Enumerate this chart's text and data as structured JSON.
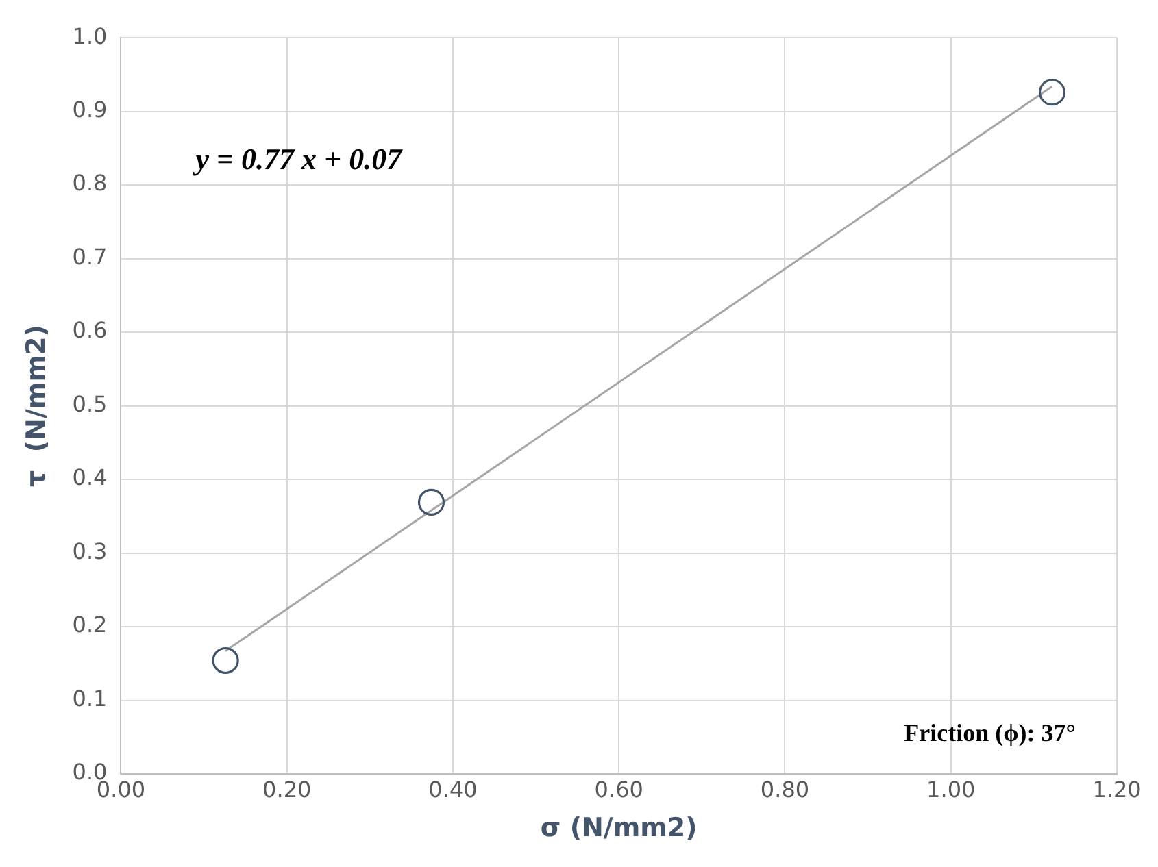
{
  "chart_data": {
    "type": "scatter",
    "xlabel": "σ (N/mm2)",
    "ylabel": "τ  (N/mm2)",
    "series": [
      {
        "marker": "circle",
        "color": "#44546a",
        "x": [
          0.126,
          0.374,
          1.122
        ],
        "values": [
          0.154,
          0.369,
          0.926
        ]
      },
      {
        "type": "line",
        "color": "#a6a6a6",
        "x": [
          0.126,
          1.122
        ],
        "values": [
          0.167,
          0.934
        ]
      }
    ],
    "annotations": [
      "y = 0.77 x + 0.07",
      "Friction (ϕ): 37°"
    ],
    "xlim": [
      0,
      1.2
    ],
    "xticks": [
      {
        "value": 0,
        "label": "0.00"
      },
      {
        "value": 0.2,
        "label": "0.20"
      },
      {
        "value": 0.4,
        "label": "0.40"
      },
      {
        "value": 0.6,
        "label": "0.60"
      },
      {
        "value": 0.8,
        "label": "0.80"
      },
      {
        "value": 1,
        "label": "1.00"
      },
      {
        "value": 1.2,
        "label": "1.20"
      }
    ],
    "ylim": [
      0,
      1
    ],
    "yticks": [
      {
        "value": 0,
        "label": "0.0"
      },
      {
        "value": 0.1,
        "label": "0.1"
      },
      {
        "value": 0.2,
        "label": "0.2"
      },
      {
        "value": 0.3,
        "label": "0.3"
      },
      {
        "value": 0.4,
        "label": "0.4"
      },
      {
        "value": 0.5,
        "label": "0.5"
      },
      {
        "value": 0.6,
        "label": "0.6"
      },
      {
        "value": 0.7,
        "label": "0.7"
      },
      {
        "value": 0.8,
        "label": "0.8"
      },
      {
        "value": 0.9,
        "label": "0.9"
      },
      {
        "value": 1,
        "label": "1.0"
      }
    ],
    "grid": true,
    "legend": false
  }
}
